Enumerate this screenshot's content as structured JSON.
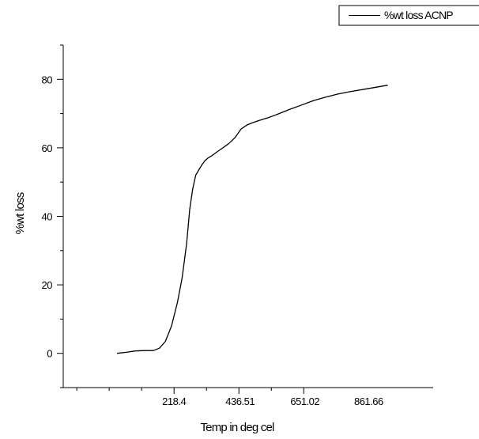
{
  "chart_data": {
    "type": "line",
    "title": "",
    "xlabel": "Temp in deg cel",
    "ylabel": "%wt loss",
    "xlim": [
      -148,
      1075
    ],
    "ylim": [
      -10,
      90
    ],
    "x_ticks": [
      218.4,
      436.51,
      651.02,
      861.66
    ],
    "x_tick_labels": [
      "218.4",
      "436.51",
      "651.02",
      "861.66"
    ],
    "y_ticks": [
      0,
      20,
      40,
      60,
      80
    ],
    "y_tick_labels": [
      "0",
      "20",
      "40",
      "60",
      "80"
    ],
    "grid": false,
    "legend_position": "top-right",
    "series": [
      {
        "name": "%wt loss ACNP",
        "color": "#000000",
        "x": [
          30,
          60,
          90,
          120,
          150,
          170,
          190,
          210,
          230,
          245,
          260,
          270,
          280,
          290,
          300,
          310,
          320,
          330,
          345,
          360,
          380,
          400,
          420,
          440,
          460,
          480,
          500,
          530,
          560,
          600,
          640,
          680,
          720,
          760,
          800,
          840,
          880,
          925
        ],
        "y": [
          0,
          0.3,
          0.7,
          0.8,
          0.8,
          1.5,
          3.5,
          8,
          15,
          22,
          32,
          42,
          48,
          52,
          53.5,
          55,
          56.2,
          57,
          57.8,
          58.8,
          60,
          61.3,
          63,
          65.5,
          66.7,
          67.4,
          68,
          68.8,
          69.8,
          71.2,
          72.5,
          73.8,
          74.8,
          75.7,
          76.4,
          77,
          77.6,
          78.3
        ]
      }
    ]
  }
}
